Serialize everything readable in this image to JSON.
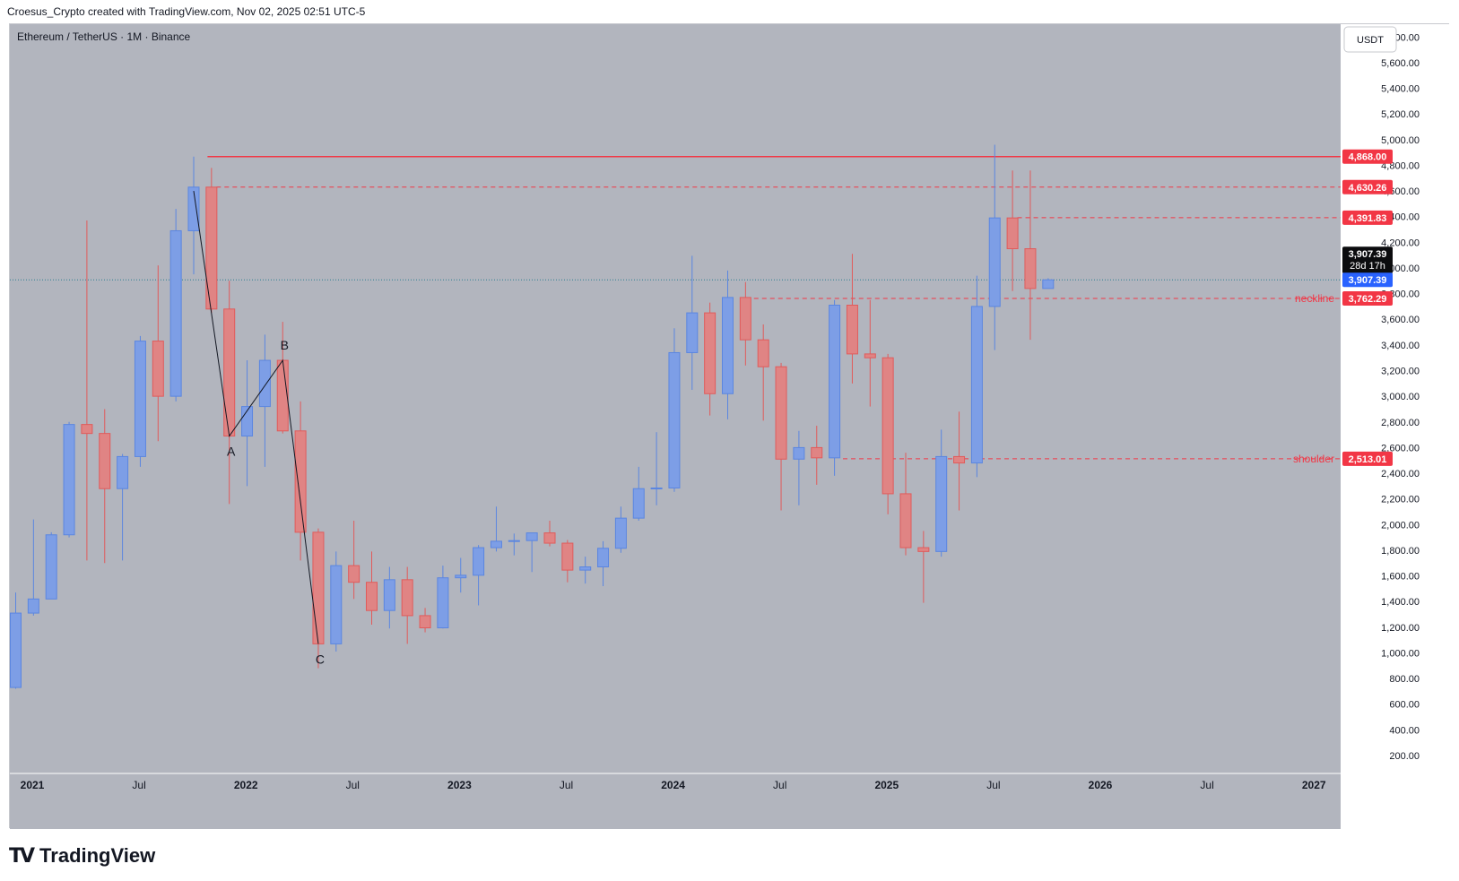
{
  "header": {
    "text": "Croesus_Crypto created with TradingView.com, Nov 02, 2025 02:51 UTC-5"
  },
  "symbol": {
    "text": "Ethereum / TetherUS · 1M · Binance"
  },
  "currency_button": "USDT",
  "footer": {
    "logo_text": "TradingView",
    "logo_mark": "TV"
  },
  "colors": {
    "bg": "#b2b5be",
    "up": "#5b86e0",
    "down": "#e05b5b",
    "line": "#f23645",
    "pane": "#ffffff"
  },
  "chart_data": {
    "type": "candlestick",
    "title": "Ethereum / TetherUS · 1M · Binance",
    "ylim": [
      60,
      5900
    ],
    "y_ticks": [
      200,
      400,
      600,
      800,
      1000,
      1200,
      1400,
      1600,
      1800,
      2000,
      2200,
      2400,
      2600,
      2800,
      3000,
      3200,
      3400,
      3600,
      3800,
      4000,
      4200,
      4400,
      4600,
      4800,
      5000,
      5200,
      5400,
      5600,
      5800
    ],
    "x_ticks": [
      {
        "label": "2021",
        "month": 0
      },
      {
        "label": "Jul",
        "month": 6
      },
      {
        "label": "2022",
        "month": 12
      },
      {
        "label": "Jul",
        "month": 18
      },
      {
        "label": "2023",
        "month": 24
      },
      {
        "label": "Jul",
        "month": 30
      },
      {
        "label": "2024",
        "month": 36
      },
      {
        "label": "Jul",
        "month": 42
      },
      {
        "label": "2025",
        "month": 48
      },
      {
        "label": "Jul",
        "month": 54
      },
      {
        "label": "2026",
        "month": 60
      },
      {
        "label": "Jul",
        "month": 66
      },
      {
        "label": "2027",
        "month": 72
      }
    ],
    "candles": [
      {
        "date": "2021-01",
        "o": 730,
        "h": 1470,
        "l": 720,
        "c": 1310
      },
      {
        "date": "2021-02",
        "o": 1310,
        "h": 2040,
        "l": 1290,
        "c": 1420
      },
      {
        "date": "2021-03",
        "o": 1420,
        "h": 1940,
        "l": 1420,
        "c": 1920
      },
      {
        "date": "2021-04",
        "o": 1920,
        "h": 2800,
        "l": 1900,
        "c": 2780
      },
      {
        "date": "2021-05",
        "o": 2780,
        "h": 4370,
        "l": 1720,
        "c": 2710
      },
      {
        "date": "2021-06",
        "o": 2710,
        "h": 2900,
        "l": 1700,
        "c": 2280
      },
      {
        "date": "2021-07",
        "o": 2280,
        "h": 2550,
        "l": 1720,
        "c": 2530
      },
      {
        "date": "2021-08",
        "o": 2530,
        "h": 3470,
        "l": 2450,
        "c": 3430
      },
      {
        "date": "2021-09",
        "o": 3430,
        "h": 4020,
        "l": 2650,
        "c": 3000
      },
      {
        "date": "2021-10",
        "o": 3000,
        "h": 4460,
        "l": 2960,
        "c": 4290
      },
      {
        "date": "2021-11",
        "o": 4290,
        "h": 4868,
        "l": 3950,
        "c": 4630
      },
      {
        "date": "2021-12",
        "o": 4630,
        "h": 4780,
        "l": 3650,
        "c": 3680
      },
      {
        "date": "2022-01",
        "o": 3680,
        "h": 3900,
        "l": 2160,
        "c": 2690
      },
      {
        "date": "2022-02",
        "o": 2690,
        "h": 3280,
        "l": 2300,
        "c": 2920
      },
      {
        "date": "2022-03",
        "o": 2920,
        "h": 3480,
        "l": 2450,
        "c": 3280
      },
      {
        "date": "2022-04",
        "o": 3280,
        "h": 3580,
        "l": 2710,
        "c": 2730
      },
      {
        "date": "2022-05",
        "o": 2730,
        "h": 2960,
        "l": 1720,
        "c": 1940
      },
      {
        "date": "2022-06",
        "o": 1940,
        "h": 1970,
        "l": 880,
        "c": 1070
      },
      {
        "date": "2022-07",
        "o": 1070,
        "h": 1790,
        "l": 1010,
        "c": 1680
      },
      {
        "date": "2022-08",
        "o": 1680,
        "h": 2030,
        "l": 1420,
        "c": 1550
      },
      {
        "date": "2022-09",
        "o": 1550,
        "h": 1790,
        "l": 1220,
        "c": 1330
      },
      {
        "date": "2022-10",
        "o": 1330,
        "h": 1670,
        "l": 1190,
        "c": 1570
      },
      {
        "date": "2022-11",
        "o": 1570,
        "h": 1670,
        "l": 1070,
        "c": 1290
      },
      {
        "date": "2022-12",
        "o": 1290,
        "h": 1350,
        "l": 1160,
        "c": 1195
      },
      {
        "date": "2023-01",
        "o": 1195,
        "h": 1680,
        "l": 1190,
        "c": 1585
      },
      {
        "date": "2023-02",
        "o": 1585,
        "h": 1740,
        "l": 1470,
        "c": 1605
      },
      {
        "date": "2023-03",
        "o": 1605,
        "h": 1840,
        "l": 1370,
        "c": 1820
      },
      {
        "date": "2023-04",
        "o": 1820,
        "h": 2140,
        "l": 1790,
        "c": 1870
      },
      {
        "date": "2023-05",
        "o": 1870,
        "h": 1930,
        "l": 1760,
        "c": 1875
      },
      {
        "date": "2023-06",
        "o": 1875,
        "h": 1930,
        "l": 1630,
        "c": 1935
      },
      {
        "date": "2023-07",
        "o": 1935,
        "h": 2030,
        "l": 1830,
        "c": 1855
      },
      {
        "date": "2023-08",
        "o": 1855,
        "h": 1880,
        "l": 1550,
        "c": 1645
      },
      {
        "date": "2023-09",
        "o": 1645,
        "h": 1750,
        "l": 1540,
        "c": 1670
      },
      {
        "date": "2023-10",
        "o": 1670,
        "h": 1870,
        "l": 1520,
        "c": 1815
      },
      {
        "date": "2023-11",
        "o": 1815,
        "h": 2140,
        "l": 1780,
        "c": 2050
      },
      {
        "date": "2023-12",
        "o": 2050,
        "h": 2450,
        "l": 2030,
        "c": 2280
      },
      {
        "date": "2024-01",
        "o": 2280,
        "h": 2720,
        "l": 2150,
        "c": 2285
      },
      {
        "date": "2024-02",
        "o": 2285,
        "h": 3530,
        "l": 2255,
        "c": 3340
      },
      {
        "date": "2024-03",
        "o": 3340,
        "h": 4095,
        "l": 3050,
        "c": 3650
      },
      {
        "date": "2024-04",
        "o": 3650,
        "h": 3730,
        "l": 2850,
        "c": 3020
      },
      {
        "date": "2024-05",
        "o": 3020,
        "h": 3980,
        "l": 2820,
        "c": 3770
      },
      {
        "date": "2024-06",
        "o": 3770,
        "h": 3890,
        "l": 3240,
        "c": 3440
      },
      {
        "date": "2024-07",
        "o": 3440,
        "h": 3560,
        "l": 2810,
        "c": 3230
      },
      {
        "date": "2024-08",
        "o": 3230,
        "h": 3260,
        "l": 2110,
        "c": 2510
      },
      {
        "date": "2024-09",
        "o": 2510,
        "h": 2730,
        "l": 2150,
        "c": 2600
      },
      {
        "date": "2024-10",
        "o": 2600,
        "h": 2770,
        "l": 2310,
        "c": 2520
      },
      {
        "date": "2024-11",
        "o": 2520,
        "h": 3750,
        "l": 2380,
        "c": 3710
      },
      {
        "date": "2024-12",
        "o": 3710,
        "h": 4110,
        "l": 3100,
        "c": 3330
      },
      {
        "date": "2025-01",
        "o": 3330,
        "h": 3750,
        "l": 2920,
        "c": 3300
      },
      {
        "date": "2025-02",
        "o": 3300,
        "h": 3330,
        "l": 2080,
        "c": 2240
      },
      {
        "date": "2025-03",
        "o": 2240,
        "h": 2560,
        "l": 1760,
        "c": 1820
      },
      {
        "date": "2025-04",
        "o": 1820,
        "h": 1950,
        "l": 1390,
        "c": 1790
      },
      {
        "date": "2025-05",
        "o": 1790,
        "h": 2740,
        "l": 1750,
        "c": 2530
      },
      {
        "date": "2025-06",
        "o": 2530,
        "h": 2880,
        "l": 2110,
        "c": 2480
      },
      {
        "date": "2025-07",
        "o": 2480,
        "h": 3940,
        "l": 2370,
        "c": 3700
      },
      {
        "date": "2025-08",
        "o": 3700,
        "h": 4960,
        "l": 3360,
        "c": 4390
      },
      {
        "date": "2025-09",
        "o": 4390,
        "h": 4760,
        "l": 3820,
        "c": 4150
      },
      {
        "date": "2025-10",
        "o": 4150,
        "h": 4760,
        "l": 3440,
        "c": 3840
      },
      {
        "date": "2025-11",
        "o": 3840,
        "h": 3920,
        "l": 3840,
        "c": 3907.39
      }
    ],
    "horizontal_levels": [
      {
        "price": 4868.0,
        "label": "4,868.00",
        "style": "solid"
      },
      {
        "price": 4630.26,
        "label": "4,630.26",
        "style": "dashed"
      },
      {
        "price": 4391.83,
        "label": "4,391.83",
        "style": "dashed"
      },
      {
        "price": 3762.29,
        "label": "3,762.29",
        "style": "dashed",
        "name": "neckline"
      },
      {
        "price": 2513.01,
        "label": "2,513.01",
        "style": "dashed",
        "name": "shoulder"
      }
    ],
    "current_price": {
      "price": 3907.39,
      "label": "3,907.39",
      "countdown": "28d 17h"
    },
    "abc_pattern": [
      {
        "label": "",
        "month": 10,
        "price": 4600
      },
      {
        "label": "A",
        "month": 12,
        "price": 2690
      },
      {
        "label": "B",
        "month": 15,
        "price": 3280
      },
      {
        "label": "C",
        "month": 17,
        "price": 1070
      }
    ]
  }
}
